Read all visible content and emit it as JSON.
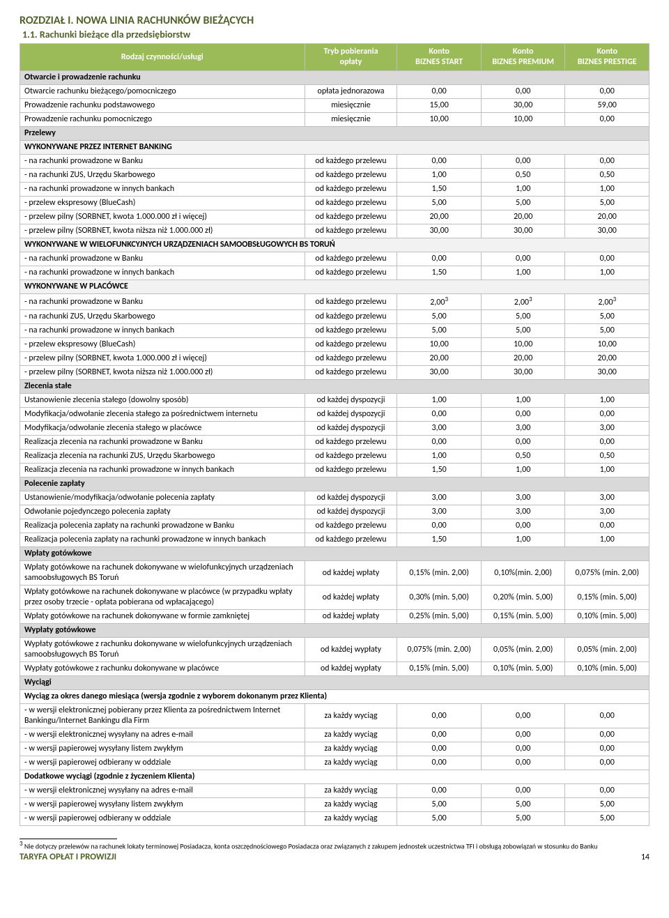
{
  "chapter_title": "ROZDZIAŁ I. NOWA LINIA RACHUNKÓW BIEŻĄCYCH",
  "section_title": "1.1. Rachunki bieżące dla przedsiębiorstw",
  "columns": {
    "rodzaj": "Rodzaj czynności/usługi",
    "tryb_l1": "Tryb pobierania",
    "tryb_l2": "opłaty",
    "c1_l1": "Konto",
    "c1_l2": "BIZNES START",
    "c2_l1": "Konto",
    "c2_l2": "BIZNES PREMIUM",
    "c3_l1": "Konto",
    "c3_l2": "BIZNES PRESTIGE"
  },
  "rows": [
    {
      "t": "cat",
      "label": "Otwarcie i prowadzenie rachunku"
    },
    {
      "label": "Otwarcie rachunku bieżącego/pomocniczego",
      "fee": "opłata jednorazowa",
      "v": [
        "0,00",
        "0,00",
        "0,00"
      ]
    },
    {
      "label": "Prowadzenie rachunku podstawowego",
      "fee": "miesięcznie",
      "v": [
        "15,00",
        "30,00",
        "59,00"
      ]
    },
    {
      "label": "Prowadzenie rachunku pomocniczego",
      "fee": "miesięcznie",
      "v": [
        "10,00",
        "10,00",
        "0,00"
      ]
    },
    {
      "t": "cat",
      "label": "Przelewy"
    },
    {
      "t": "subcat",
      "label": "WYKONYWANE PRZEZ INTERNET BANKING"
    },
    {
      "label": "- na rachunki prowadzone w Banku",
      "fee": "od każdego przelewu",
      "v": [
        "0,00",
        "0,00",
        "0,00"
      ]
    },
    {
      "label": "- na rachunki ZUS, Urzędu Skarbowego",
      "fee": "od każdego przelewu",
      "v": [
        "1,00",
        "0,50",
        "0,50"
      ]
    },
    {
      "label": "- na rachunki prowadzone w innych bankach",
      "fee": "od każdego przelewu",
      "v": [
        "1,50",
        "1,00",
        "1,00"
      ]
    },
    {
      "label": "- przelew ekspresowy (BlueCash)",
      "fee": "od każdego przelewu",
      "v": [
        "5,00",
        "5,00",
        "5,00"
      ]
    },
    {
      "label": "- przelew pilny (SORBNET, kwota 1.000.000 zł i więcej)",
      "fee": "od każdego przelewu",
      "v": [
        "20,00",
        "20,00",
        "20,00"
      ]
    },
    {
      "label": "- przelew pilny (SORBNET, kwota niższa niż 1.000.000 zł)",
      "fee": "od każdego przelewu",
      "v": [
        "30,00",
        "30,00",
        "30,00"
      ]
    },
    {
      "t": "subcat",
      "label": "WYKONYWANE W WIELOFUNKCYJNYCH URZĄDZENIACH SAMOOBSŁUGOWYCH BS TORUŃ"
    },
    {
      "label": "- na rachunki prowadzone w Banku",
      "fee": "od każdego przelewu",
      "v": [
        "0,00",
        "0,00",
        "0,00"
      ]
    },
    {
      "label": "- na rachunki prowadzone w innych bankach",
      "fee": "od każdego przelewu",
      "v": [
        "1,50",
        "1,00",
        "1,00"
      ]
    },
    {
      "t": "subcat",
      "label": "WYKONYWANE W PLACÓWCE"
    },
    {
      "label": "- na rachunki prowadzone w Banku",
      "fee": "od każdego przelewu",
      "v": [
        "2,00³",
        "2,00³",
        "2,00³"
      ],
      "sup": true
    },
    {
      "label": "- na rachunki ZUS, Urzędu Skarbowego",
      "fee": "od każdego przelewu",
      "v": [
        "5,00",
        "5,00",
        "5,00"
      ]
    },
    {
      "label": "- na rachunki prowadzone w innych bankach",
      "fee": "od każdego przelewu",
      "v": [
        "5,00",
        "5,00",
        "5,00"
      ]
    },
    {
      "label": "- przelew ekspresowy (BlueCash)",
      "fee": "od każdego przelewu",
      "v": [
        "10,00",
        "10,00",
        "10,00"
      ]
    },
    {
      "label": "- przelew pilny (SORBNET, kwota 1.000.000 zł i więcej)",
      "fee": "od każdego przelewu",
      "v": [
        "20,00",
        "20,00",
        "20,00"
      ]
    },
    {
      "label": "- przelew pilny (SORBNET, kwota niższa niż 1.000.000 zł)",
      "fee": "od każdego przelewu",
      "v": [
        "30,00",
        "30,00",
        "30,00"
      ]
    },
    {
      "t": "cat",
      "label": "Zlecenia stałe"
    },
    {
      "label": "Ustanowienie zlecenia stałego (dowolny sposób)",
      "fee": "od każdej dyspozycji",
      "v": [
        "1,00",
        "1,00",
        "1,00"
      ]
    },
    {
      "label": "Modyfikacja/odwołanie zlecenia stałego za pośrednictwem internetu",
      "fee": "od każdej dyspozycji",
      "v": [
        "0,00",
        "0,00",
        "0,00"
      ]
    },
    {
      "label": "Modyfikacja/odwołanie zlecenia stałego w placówce",
      "fee": "od każdej dyspozycji",
      "v": [
        "3,00",
        "3,00",
        "3,00"
      ]
    },
    {
      "label": "Realizacja zlecenia na rachunki prowadzone w Banku",
      "fee": "od każdego przelewu",
      "v": [
        "0,00",
        "0,00",
        "0,00"
      ]
    },
    {
      "label": "Realizacja zlecenia na rachunki ZUS, Urzędu Skarbowego",
      "fee": "od każdego przelewu",
      "v": [
        "1,00",
        "0,50",
        "0,50"
      ]
    },
    {
      "label": "Realizacja zlecenia na rachunki prowadzone w innych bankach",
      "fee": "od każdego przelewu",
      "v": [
        "1,50",
        "1,00",
        "1,00"
      ]
    },
    {
      "t": "cat",
      "label": "Polecenie zapłaty"
    },
    {
      "label": "Ustanowienie/modyfikacja/odwołanie polecenia zapłaty",
      "fee": "od każdej dyspozycji",
      "v": [
        "3,00",
        "3,00",
        "3,00"
      ]
    },
    {
      "label": "Odwołanie pojedynczego polecenia zapłaty",
      "fee": "od każdej dyspozycji",
      "v": [
        "3,00",
        "3,00",
        "3,00"
      ]
    },
    {
      "label": "Realizacja polecenia zapłaty na rachunki prowadzone w Banku",
      "fee": "od każdego przelewu",
      "v": [
        "0,00",
        "0,00",
        "0,00"
      ]
    },
    {
      "label": "Realizacja polecenia zapłaty na rachunki prowadzone w innych bankach",
      "fee": "od każdego przelewu",
      "v": [
        "1,50",
        "1,00",
        "1,00"
      ]
    },
    {
      "t": "cat",
      "label": "Wpłaty gotówkowe"
    },
    {
      "label": "Wpłaty gotówkowe na rachunek dokonywane w wielofunkcyjnych urządzeniach samoobsługowych BS Toruń",
      "fee": "od każdej wpłaty",
      "v": [
        "0,15% (min. 2,00)",
        "0,10%(min. 2,00)",
        "0,075% (min. 2,00)"
      ]
    },
    {
      "label": "Wpłaty gotówkowe na rachunek dokonywane w placówce\n(w przypadku wpłaty przez osoby trzecie - opłata pobierana od wpłacającego)",
      "fee": "od każdej wpłaty",
      "v": [
        "0,30%  (min. 5,00)",
        "0,20% (min. 5,00)",
        "0,15% (min. 5,00)"
      ]
    },
    {
      "label": "Wpłaty gotówkowe na rachunek dokonywane w formie zamkniętej",
      "fee": "od każdej wpłaty",
      "v": [
        "0,25% (min. 5,00)",
        "0,15% (min. 5,00)",
        "0,10% (min. 5,00)"
      ]
    },
    {
      "t": "cat",
      "label": "Wypłaty gotówkowe"
    },
    {
      "label": "Wypłaty gotówkowe z rachunku dokonywane w wielofunkcyjnych urządzeniach samoobsługowych BS Toruń",
      "fee": "od każdej wypłaty",
      "v": [
        "0,075% (min. 2,00)",
        "0,05% (min. 2,00)",
        "0,05% (min. 2,00)"
      ]
    },
    {
      "label": "Wypłaty gotówkowe z rachunku dokonywane w placówce",
      "fee": "od każdej wypłaty",
      "v": [
        "0,15% (min. 5,00)",
        "0,10% (min. 5,00)",
        "0,10% (min. 5,00)"
      ]
    },
    {
      "t": "cat",
      "label": "Wyciągi"
    },
    {
      "t": "subbold",
      "label": "Wyciąg za okres danego miesiąca (wersja zgodnie z wyborem dokonanym przez Klienta)"
    },
    {
      "label": "- w wersji elektronicznej pobierany przez Klienta za pośrednictwem Internet Bankingu/Internet Bankingu dla Firm",
      "fee": "za każdy wyciąg",
      "v": [
        "0,00",
        "0,00",
        "0,00"
      ]
    },
    {
      "label": "- w wersji elektronicznej wysyłany na adres e-mail",
      "fee": "za każdy wyciąg",
      "v": [
        "0,00",
        "0,00",
        "0,00"
      ]
    },
    {
      "label": "- w wersji papierowej wysyłany listem zwykłym",
      "fee": "za każdy wyciąg",
      "v": [
        "0,00",
        "0,00",
        "0,00"
      ]
    },
    {
      "label": "- w wersji papierowej odbierany w oddziale",
      "fee": "za każdy wyciąg",
      "v": [
        "0,00",
        "0,00",
        "0,00"
      ]
    },
    {
      "t": "subbold",
      "label": "Dodatkowe wyciągi (zgodnie z życzeniem Klienta)"
    },
    {
      "label": "- w wersji elektronicznej wysyłany na adres e-mail",
      "fee": "za każdy wyciąg",
      "v": [
        "0,00",
        "0,00",
        "0,00"
      ]
    },
    {
      "label": "- w wersji papierowej wysyłany listem zwykłym",
      "fee": "za każdy wyciąg",
      "v": [
        "5,00",
        "5,00",
        "5,00"
      ]
    },
    {
      "label": "- w wersji papierowej odbierany w oddziale",
      "fee": "za każdy wyciąg",
      "v": [
        "5,00",
        "5,00",
        "5,00"
      ]
    }
  ],
  "footnote_num": "3",
  "footnote_text": "Nie dotyczy przelewów na rachunek lokaty terminowej Posiadacza, konta oszczędnościowego Posiadacza oraz związanych z zakupem jednostek uczestnictwa TFI i obsługą zobowiązań w stosunku do Banku",
  "footer_title": "TARYFA OPŁAT I PROWIZJI",
  "footer_page": "14"
}
